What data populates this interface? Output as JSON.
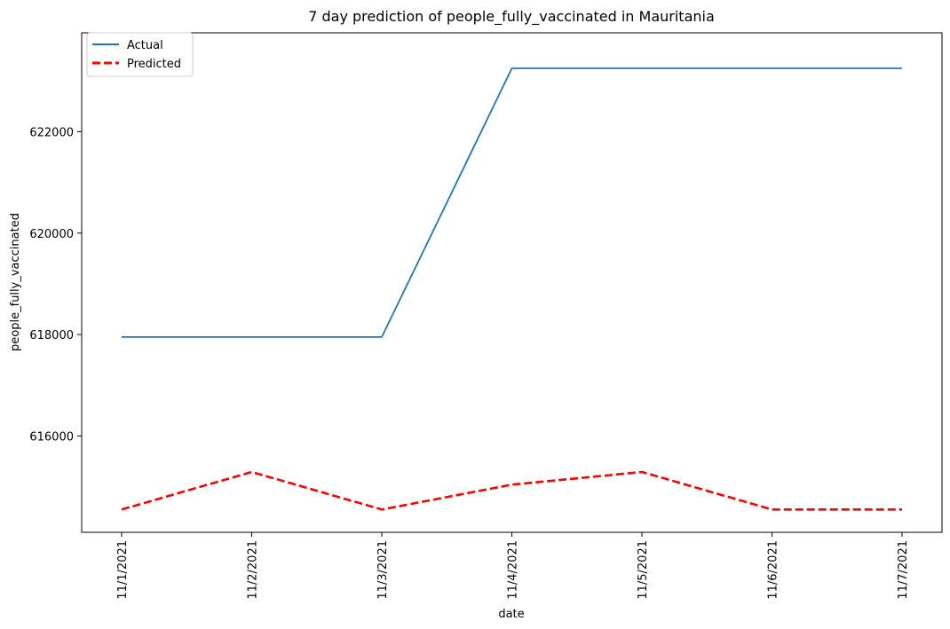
{
  "chart_data": {
    "type": "line",
    "title": "7 day prediction of people_fully_vaccinated in Mauritania",
    "xlabel": "date",
    "ylabel": "people_fully_vaccinated",
    "categories": [
      "11/1/2021",
      "11/2/2021",
      "11/3/2021",
      "11/4/2021",
      "11/5/2021",
      "11/6/2021",
      "11/7/2021"
    ],
    "yticks": [
      616000,
      618000,
      620000,
      622000
    ],
    "ytick_labels": [
      "616000",
      "618000",
      "620000",
      "622000"
    ],
    "ylim": [
      614100,
      623950
    ],
    "grid": false,
    "legend_position": "top-left",
    "series": [
      {
        "name": "Actual",
        "color": "#1f77b4",
        "style": "solid",
        "values": [
          617950,
          617950,
          617950,
          623250,
          623250,
          623250,
          623250
        ]
      },
      {
        "name": "Predicted",
        "color": "#ff0000",
        "style": "dashed",
        "values": [
          614550,
          615290,
          614550,
          615040,
          615290,
          614550,
          614550
        ]
      }
    ]
  }
}
